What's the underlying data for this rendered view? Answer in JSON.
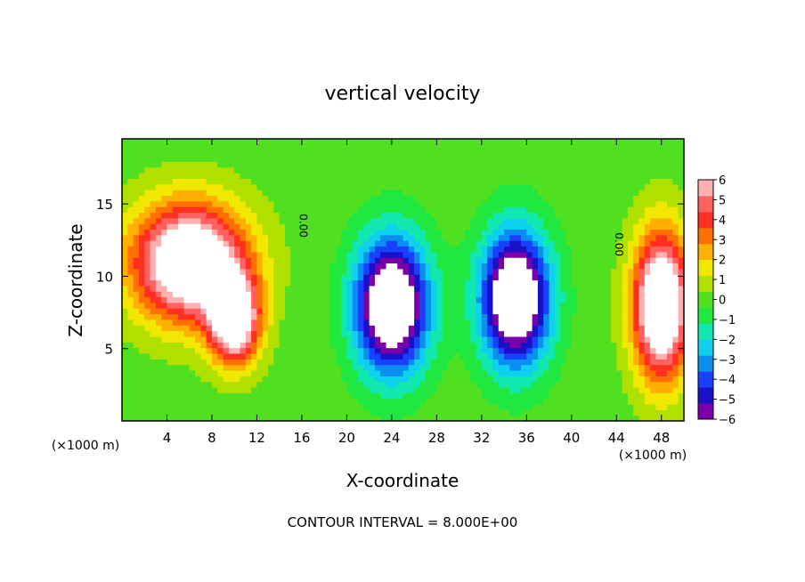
{
  "chart_data": {
    "type": "heatmap",
    "title": "vertical velocity",
    "xlabel": "X-coordinate",
    "ylabel": "Z-coordinate",
    "x_unit": "(×1000 m)",
    "x_unit_right": "(×1000 m)",
    "footer": "CONTOUR INTERVAL = 8.000E+00",
    "xlim": [
      0,
      50
    ],
    "ylim": [
      0,
      19.5
    ],
    "xticks": [
      4,
      8,
      12,
      16,
      20,
      24,
      28,
      32,
      36,
      40,
      44,
      48
    ],
    "yticks": [
      5,
      10,
      15
    ],
    "colorbar": {
      "ticks": [
        6,
        5,
        4,
        3,
        2,
        1,
        0,
        -1,
        -2,
        -3,
        -4,
        -5,
        -6
      ],
      "range": [
        -6,
        6
      ],
      "colors": [
        "#7a00a8",
        "#1a10c8",
        "#1a40ff",
        "#0a8ef0",
        "#10d0f0",
        "#10e8b0",
        "#20e840",
        "#50e020",
        "#b0e000",
        "#f0e800",
        "#ffb000",
        "#ff7000",
        "#ff3020",
        "#ff6060",
        "#ffb0b0"
      ]
    },
    "contour_labels": [
      {
        "text": "0.00",
        "x": 15.8,
        "y": 13.5
      },
      {
        "text": "0.00",
        "x": 43.9,
        "y": 12.2
      }
    ],
    "features": [
      {
        "kind": "updraft",
        "x": 6,
        "z": 11,
        "sx": 5,
        "sz": 4,
        "w": 9
      },
      {
        "kind": "updraft",
        "x": 10,
        "z": 7,
        "sx": 2.2,
        "sz": 3,
        "w": 8
      },
      {
        "kind": "updraft",
        "x": 48,
        "z": 8,
        "sx": 2.5,
        "sz": 5,
        "w": 9
      },
      {
        "kind": "downdraft",
        "x": 24,
        "z": 8,
        "sx": 3.2,
        "sz": 4.5,
        "w": -9
      },
      {
        "kind": "downdraft",
        "x": 35,
        "z": 8.5,
        "sx": 3,
        "sz": 4.5,
        "w": -9
      }
    ]
  }
}
